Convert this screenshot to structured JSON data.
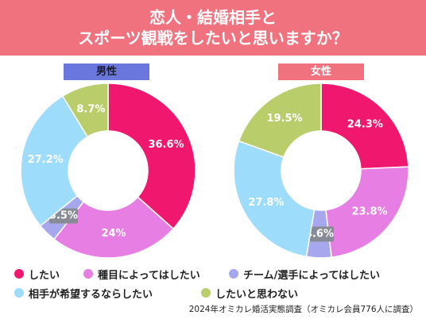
{
  "title": {
    "line1": "恋人・結婚相手と",
    "line2": "スポーツ観戦をしたいと思いますか？"
  },
  "colors": {
    "shitai": "#f0186e",
    "shumoku": "#e67ee3",
    "team": "#a7a7ee",
    "aite": "#9ddcfb",
    "omowanai": "#b9cd6b"
  },
  "legend": [
    {
      "key": "shitai",
      "label": "したい"
    },
    {
      "key": "shumoku",
      "label": "種目によってはしたい"
    },
    {
      "key": "team",
      "label": "チーム/選手によってはしたい"
    },
    {
      "key": "aite",
      "label": "相手が希望するならしたい"
    },
    {
      "key": "omowanai",
      "label": "したいと思わない"
    }
  ],
  "chart_data": [
    {
      "type": "pie",
      "title": "男性",
      "slices": [
        {
          "key": "shitai",
          "label": "したい",
          "value": 36.6,
          "display": "36.6%"
        },
        {
          "key": "shumoku",
          "label": "種目によってはしたい",
          "value": 24.0,
          "display": "24%"
        },
        {
          "key": "team",
          "label": "チーム/選手によってはしたい",
          "value": 3.5,
          "display": "3.5%"
        },
        {
          "key": "aite",
          "label": "相手が希望するならしたい",
          "value": 27.2,
          "display": "27.2%"
        },
        {
          "key": "omowanai",
          "label": "したいと思わない",
          "value": 8.7,
          "display": "8.7%"
        }
      ]
    },
    {
      "type": "pie",
      "title": "女性",
      "slices": [
        {
          "key": "shitai",
          "label": "したい",
          "value": 24.3,
          "display": "24.3%"
        },
        {
          "key": "shumoku",
          "label": "種目によってはしたい",
          "value": 23.8,
          "display": "23.8%"
        },
        {
          "key": "team",
          "label": "チーム/選手によってはしたい",
          "value": 4.6,
          "display": "4.6%"
        },
        {
          "key": "aite",
          "label": "相手が希望するならしたい",
          "value": 27.8,
          "display": "27.8%"
        },
        {
          "key": "omowanai",
          "label": "したいと思わない",
          "value": 19.5,
          "display": "19.5%"
        }
      ]
    }
  ],
  "source": "2024年オミカレ婚活実態調査（オミカレ会員776人に調査）"
}
